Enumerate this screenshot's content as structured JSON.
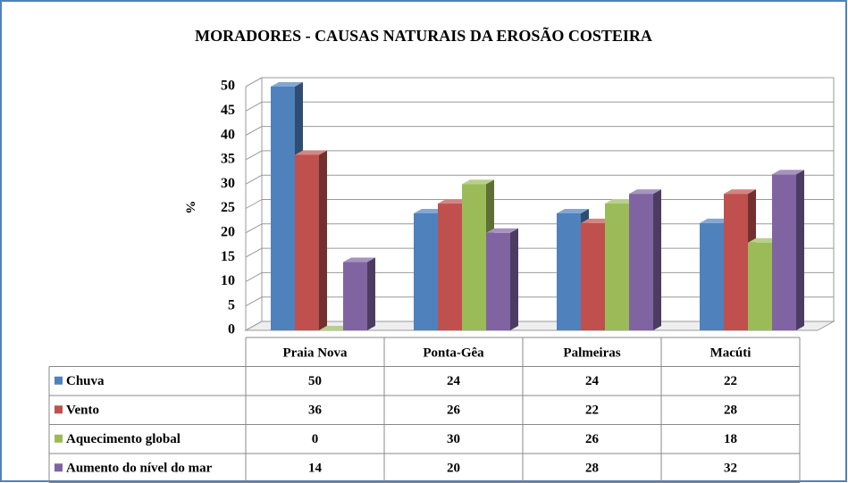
{
  "chart_data": {
    "type": "bar3d",
    "title": "MORADORES - CAUSAS NATURAIS DA EROSÃO COSTEIRA",
    "ylabel": "%",
    "categories": [
      "Praia Nova",
      "Ponta-Gêa",
      "Palmeiras",
      "Macúti"
    ],
    "series": [
      {
        "name": "Chuva",
        "color": "#4f81bd",
        "values": [
          50,
          24,
          24,
          22
        ]
      },
      {
        "name": "Vento",
        "color": "#c0504d",
        "values": [
          36,
          26,
          22,
          28
        ]
      },
      {
        "name": "Aquecimento global",
        "color": "#9bbb59",
        "values": [
          0,
          30,
          26,
          18
        ]
      },
      {
        "name": "Aumento do nível do mar",
        "color": "#8064a2",
        "values": [
          14,
          20,
          28,
          32
        ]
      }
    ],
    "ylim": [
      0,
      50
    ],
    "yticks": [
      0,
      5,
      10,
      15,
      20,
      25,
      30,
      35,
      40,
      45,
      50
    ],
    "grid": true,
    "data_table": true
  }
}
